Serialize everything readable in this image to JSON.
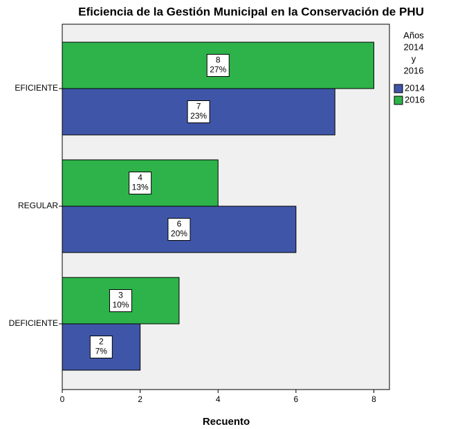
{
  "chart_data": {
    "type": "barh",
    "title": "Eficiencia de la Gestión Municipal en la Conservación de PHU",
    "x_label": "Recuento",
    "legend_title": [
      "Años",
      "2014",
      "y",
      "2016"
    ],
    "categories": [
      "EFICIENTE",
      "REGULAR",
      "DEFICIENTE"
    ],
    "series": [
      {
        "name": "2016",
        "color": "#2db34a",
        "values": [
          8,
          4,
          3
        ],
        "percents": [
          27,
          13,
          10
        ],
        "percent_labels": [
          "27%",
          "13%",
          "10%"
        ]
      },
      {
        "name": "2014",
        "color": "#3f56a8",
        "values": [
          7,
          6,
          2
        ],
        "percents": [
          23,
          20,
          7
        ],
        "percent_labels": [
          "23%",
          "20%",
          "7%"
        ]
      }
    ],
    "legend_order": [
      1,
      0
    ],
    "xlim": [
      0,
      8.4
    ],
    "xticks": [
      0,
      2,
      4,
      6,
      8
    ]
  }
}
